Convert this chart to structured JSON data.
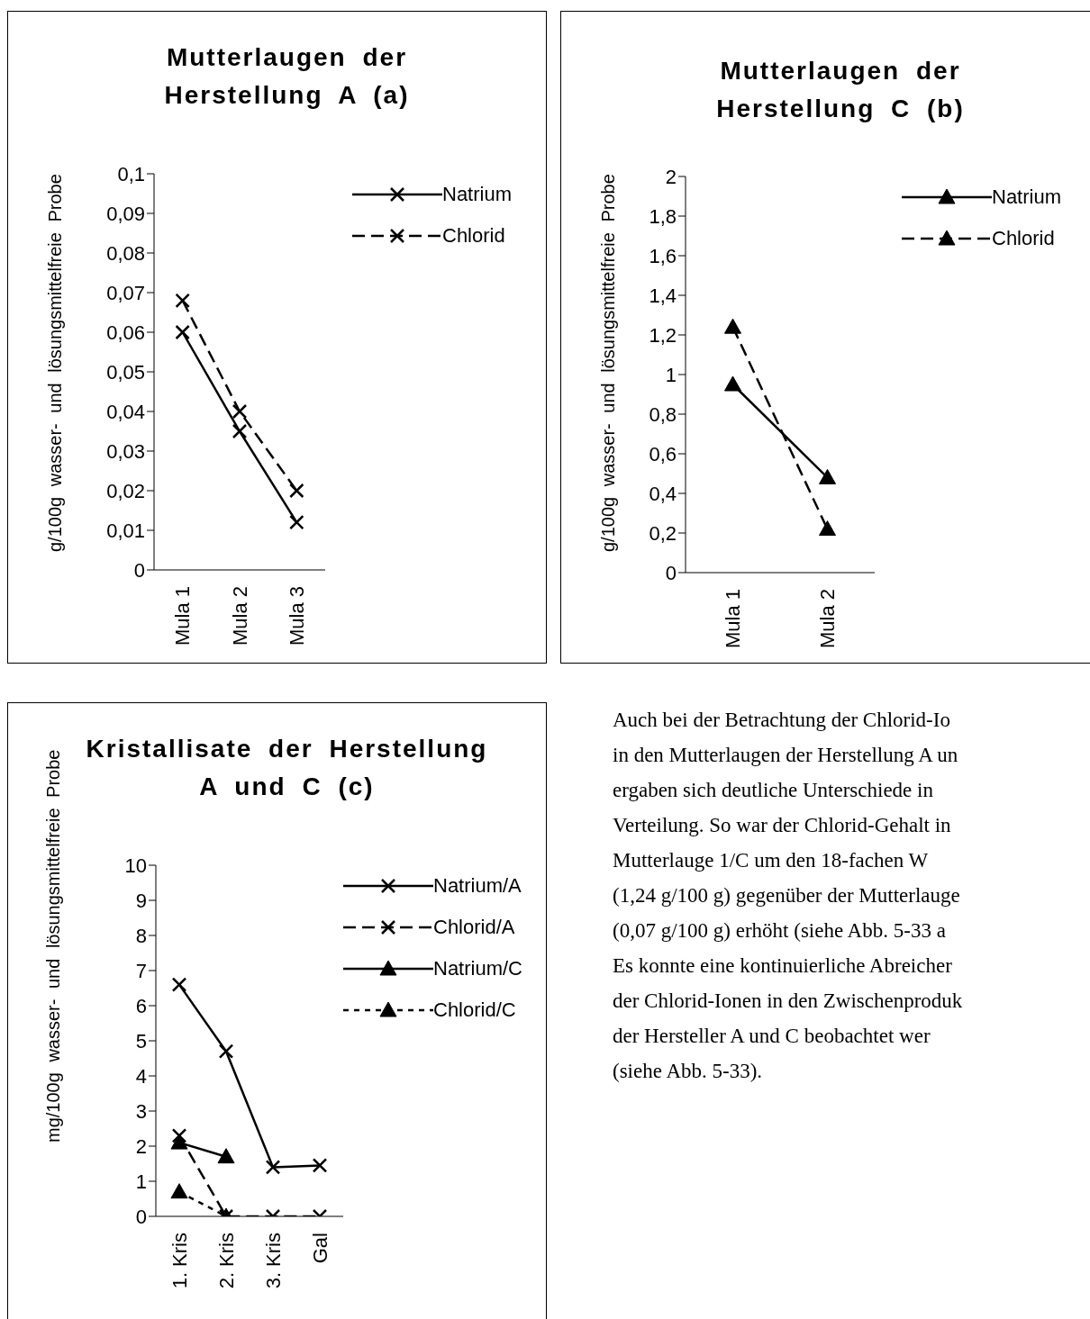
{
  "chart_data": [
    {
      "type": "line",
      "title": "Mutterlaugen der Herstellung A (a)",
      "ylabel": "g/100g wasser- und lösungsmittelfreie Probe",
      "categories": [
        "Mula 1",
        "Mula 2",
        "Mula 3"
      ],
      "series": [
        {
          "name": "Natrium",
          "color": "#000000",
          "values": [
            0.06,
            0.035,
            0.012
          ],
          "marker": "cross",
          "line_style": "solid"
        },
        {
          "name": "Chlorid",
          "color": "#000000",
          "values": [
            0.068,
            0.04,
            0.02
          ],
          "marker": "cross",
          "line_style": "dashed"
        }
      ],
      "ylim": [
        0,
        0.1
      ],
      "yticks": [
        0,
        {
          "value": 0.01,
          "label": "0,01"
        },
        {
          "value": 0.02,
          "label": "0,02"
        },
        {
          "value": 0.03,
          "label": "0,03"
        },
        {
          "value": 0.04,
          "label": "0,04"
        },
        {
          "value": 0.05,
          "label": "0,05"
        },
        {
          "value": 0.06,
          "label": "0,06"
        },
        {
          "value": 0.07,
          "label": "0,07"
        },
        {
          "value": 0.08,
          "label": "0,08"
        },
        {
          "value": 0.09,
          "label": "0,09"
        },
        {
          "value": 0.1,
          "label": "0,1"
        }
      ],
      "grid": false,
      "legend": "right"
    },
    {
      "type": "line",
      "title": "Mutterlaugen der Herstellung C (b)",
      "ylabel": "g/100g wasser- und lösungsmittelfreie Probe",
      "categories": [
        "Mula 1",
        "Mula 2"
      ],
      "series": [
        {
          "name": "Natrium",
          "color": "#000000",
          "values": [
            0.95,
            0.48
          ],
          "marker": "triangle",
          "line_style": "solid"
        },
        {
          "name": "Chlorid",
          "color": "#000000",
          "values": [
            1.24,
            0.22
          ],
          "marker": "triangle",
          "line_style": "dashed"
        }
      ],
      "ylim": [
        0,
        2
      ],
      "yticks": [
        0,
        {
          "value": 0.2,
          "label": "0,2"
        },
        {
          "value": 0.4,
          "label": "0,4"
        },
        {
          "value": 0.6,
          "label": "0,6"
        },
        {
          "value": 0.8,
          "label": "0,8"
        },
        1,
        {
          "value": 1.2,
          "label": "1,2"
        },
        {
          "value": 1.4,
          "label": "1,4"
        },
        {
          "value": 1.6,
          "label": "1,6"
        },
        {
          "value": 1.8,
          "label": "1,8"
        },
        2
      ],
      "grid": false,
      "legend": "right"
    },
    {
      "type": "line",
      "title": "Kristallisate der Herstellung A und C (c)",
      "ylabel": "mg/100g wasser- und lösungsmittelfreie Probe",
      "categories": [
        "1. Kris",
        "2. Kris",
        "3. Kris",
        "Gal"
      ],
      "series": [
        {
          "name": "Natrium/A",
          "color": "#000000",
          "values": [
            6.6,
            4.7,
            1.4,
            1.45
          ],
          "marker": "cross",
          "line_style": "solid"
        },
        {
          "name": "Chlorid/A",
          "color": "#000000",
          "values": [
            2.3,
            0,
            0,
            0
          ],
          "marker": "cross",
          "line_style": "dashed"
        },
        {
          "name": "Natrium/C",
          "color": "#000000",
          "values": [
            2.1,
            1.7,
            null,
            null
          ],
          "marker": "triangle",
          "line_style": "solid"
        },
        {
          "name": "Chlorid/C",
          "color": "#000000",
          "values": [
            0.7,
            0,
            null,
            null
          ],
          "marker": "triangle",
          "line_style": "dotted"
        }
      ],
      "ylim": [
        0,
        10
      ],
      "yticks": [
        0,
        1,
        2,
        3,
        4,
        5,
        6,
        7,
        8,
        9,
        10
      ],
      "grid": false,
      "legend": "right"
    },
    {
      "type": "other",
      "annotations": [
        "Auch bei der Betrachtung der Chlorid-Io",
        "in den Mutterlaugen der Herstellung A un",
        "ergaben sich deutliche Unterschiede in",
        "Verteilung. So war der Chlorid-Gehalt in",
        "Mutterlauge 1/C um den 18-fachen W",
        "(1,24 g/100 g) gegenüber der Mutterlauge",
        "(0,07 g/100 g) erhöht (siehe Abb. 5-33 a",
        "Es konnte eine kontinuierliche Abreicher",
        "der Chlorid-Ionen in den Zwischenproduk",
        "der Hersteller A und C beobachtet wer",
        "(siehe Abb. 5-33)."
      ]
    }
  ]
}
